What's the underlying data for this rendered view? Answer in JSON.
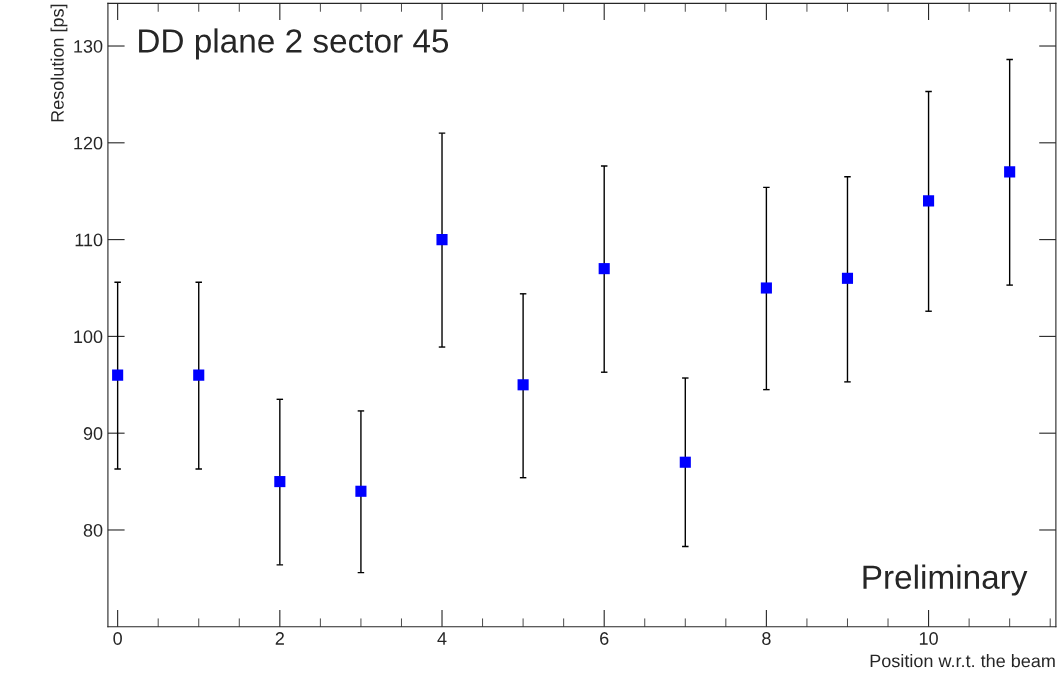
{
  "chart_data": {
    "type": "scatter",
    "xlabel": "Position w.r.t. the beam",
    "ylabel": "Resolution [ps]",
    "x": [
      0,
      1,
      2,
      3,
      4,
      5,
      6,
      7,
      8,
      9,
      10,
      11
    ],
    "series": [
      {
        "color": "#0000ff",
        "values": [
          96,
          96,
          85,
          84,
          110,
          95,
          107,
          87,
          105,
          106,
          114,
          117
        ],
        "errors": [
          [
            86.3,
            105.6
          ],
          [
            86.3,
            105.6
          ],
          [
            76.4,
            93.5
          ],
          [
            75.6,
            92.3
          ],
          [
            98.9,
            121
          ],
          [
            85.4,
            104.4
          ],
          [
            96.3,
            117.6
          ],
          [
            78.3,
            95.7
          ],
          [
            94.5,
            115.4
          ],
          [
            95.3,
            116.5
          ],
          [
            102.6,
            125.3
          ],
          [
            105.3,
            128.6
          ]
        ]
      }
    ],
    "marker": "square",
    "grid": false,
    "xlim": [
      -0.12,
      11.57
    ],
    "ylim": [
      70,
      134.4
    ],
    "xticks": [
      0,
      2,
      4,
      6,
      8,
      10
    ],
    "yticks": [
      80,
      90,
      100,
      110,
      120,
      130
    ],
    "annotations": [
      "DD plane 2 sector 45",
      "Preliminary"
    ]
  }
}
